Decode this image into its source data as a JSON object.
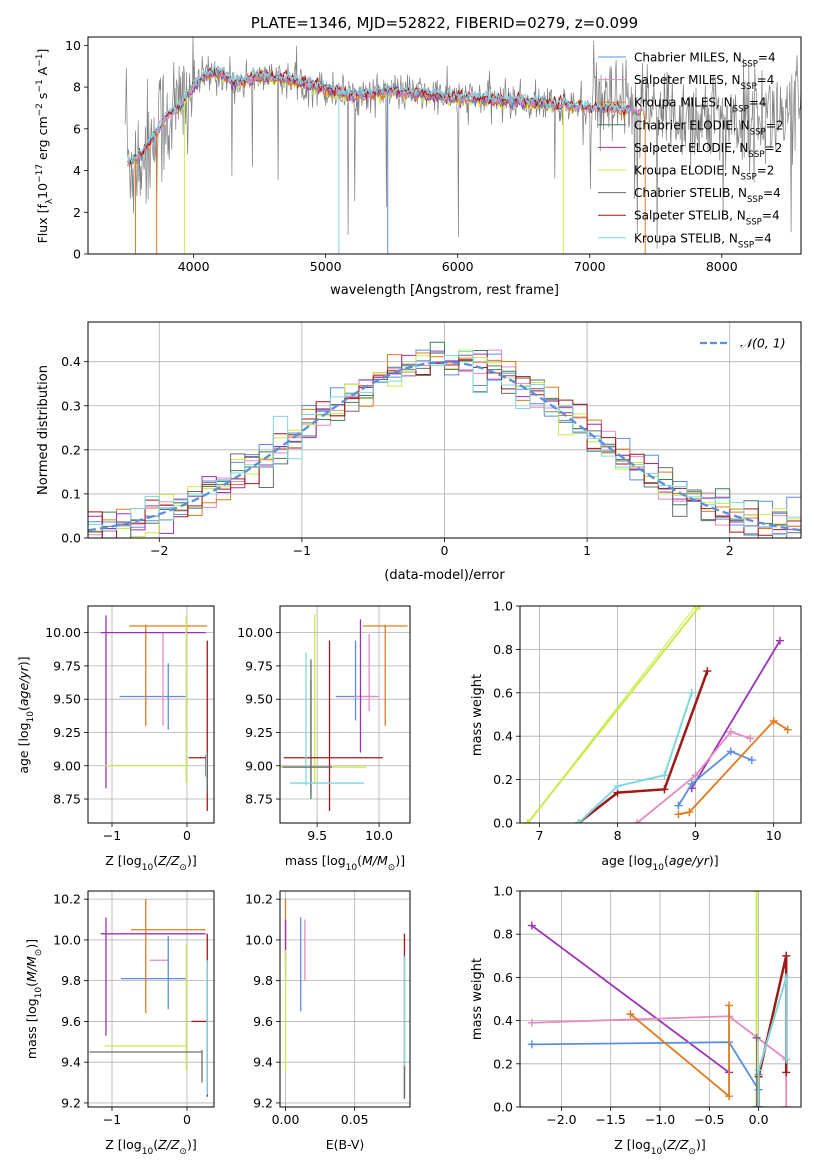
{
  "colors": {
    "chabrier_miles": "#5b8fdd",
    "salpeter_miles": "#e68ac1",
    "kroupa_miles": "#e07b1f",
    "chabrier_elodie": "#3f7f5a",
    "salpeter_elodie": "#9b32b5",
    "kroupa_elodie": "#c8ec4a",
    "chabrier_stelib": "#6e6e6e",
    "salpeter_stelib": "#a01818",
    "kroupa_stelib": "#7fd8dd",
    "normal_curve": "#5b8fdd",
    "grid": "#b0b0b0"
  },
  "chart_data": [
    {
      "id": "spectrum",
      "type": "line",
      "title": "PLATE=1346, MJD=52822, FIBERID=0279, z=0.099",
      "xlabel": "wavelength [Angstrom, rest frame]",
      "ylabel": "Flux [f",
      "ylabel_parts": [
        "Flux [f",
        "λ",
        "10",
        "−17",
        " erg cm",
        "−2",
        " s",
        "−1",
        " A",
        "−1",
        "]"
      ],
      "xlim": [
        3200,
        8600
      ],
      "ylim": [
        0,
        10.4
      ],
      "xticks": [
        4000,
        5000,
        6000,
        7000,
        8000
      ],
      "yticks": [
        0,
        2,
        4,
        6,
        8,
        10
      ],
      "grid": false,
      "legend_position": "top-right",
      "legend": [
        {
          "key": "chabrier_miles",
          "label": "Chabrier MILES, N",
          "sub": "SSP",
          "suffix": "=4"
        },
        {
          "key": "salpeter_miles",
          "label": "Salpeter MILES, N",
          "sub": "SSP",
          "suffix": "=4"
        },
        {
          "key": "kroupa_miles",
          "label": "Kroupa MILES, N",
          "sub": "SSP",
          "suffix": "=4"
        },
        {
          "key": "chabrier_elodie",
          "label": "Chabrier ELODIE, N",
          "sub": "SSP",
          "suffix": "=2"
        },
        {
          "key": "salpeter_elodie",
          "label": "Salpeter ELODIE, N",
          "sub": "SSP",
          "suffix": "=2"
        },
        {
          "key": "kroupa_elodie",
          "label": "Kroupa ELODIE, N",
          "sub": "SSP",
          "suffix": "=2"
        },
        {
          "key": "chabrier_stelib",
          "label": "Chabrier STELIB, N",
          "sub": "SSP",
          "suffix": "=4"
        },
        {
          "key": "salpeter_stelib",
          "label": "Salpeter STELIB, N",
          "sub": "SSP",
          "suffix": "=4"
        },
        {
          "key": "kroupa_stelib",
          "label": "Kroupa STELIB, N",
          "sub": "SSP",
          "suffix": "=4"
        }
      ],
      "continuum": {
        "x": [
          3500,
          3600,
          3700,
          3800,
          3900,
          4000,
          4100,
          4200,
          4300,
          4500,
          4700,
          5000,
          5200,
          5500,
          6000,
          6500,
          7000,
          7500,
          8000,
          8300,
          8600
        ],
        "y": [
          4.3,
          4.7,
          5.6,
          6.6,
          7.0,
          8.1,
          8.6,
          8.7,
          8.2,
          8.5,
          8.4,
          7.9,
          7.6,
          7.8,
          7.5,
          7.3,
          7.0,
          6.8,
          6.4,
          6.6,
          6.7
        ]
      },
      "spectrum_range": [
        3480,
        8600
      ]
    },
    {
      "id": "residuals",
      "type": "step",
      "xlabel": "(data-model)/error",
      "ylabel": "Normed distribution",
      "xlim": [
        -2.5,
        2.5
      ],
      "ylim": [
        0,
        0.49
      ],
      "xticks": [
        -2,
        -1,
        0,
        1,
        2
      ],
      "xtick_labels": [
        "−2",
        "−1",
        "0",
        "1",
        "2"
      ],
      "yticks": [
        0.0,
        0.1,
        0.2,
        0.3,
        0.4
      ],
      "ytick_labels": [
        "0.0",
        "0.1",
        "0.2",
        "0.3",
        "0.4"
      ],
      "grid": true,
      "legend_position": "top-right",
      "legend": [
        {
          "key": "normal_curve",
          "label": "𝒩(0, 1)"
        }
      ],
      "bins": {
        "start": -2.5,
        "width": 0.1
      }
    },
    {
      "id": "age_vs_z",
      "type": "errorbar",
      "xlabel": "Z [log",
      "xlabel_parts": [
        "Z [log",
        "10",
        "(Z/Z",
        "⊙",
        ")]"
      ],
      "ylabel_parts": [
        "age  [log",
        "10",
        "(age/yr)]"
      ],
      "xlim": [
        -1.32,
        0.36
      ],
      "ylim": [
        8.57,
        10.2
      ],
      "xticks": [
        -1,
        0
      ],
      "xtick_labels": [
        "−1",
        "0"
      ],
      "yticks": [
        8.75,
        9.0,
        9.25,
        9.5,
        9.75,
        10.0
      ],
      "ytick_labels": [
        "8.75",
        "9.00",
        "9.25",
        "9.50",
        "9.75",
        "10.00"
      ],
      "grid": true,
      "points": [
        {
          "s": "chabrier_miles",
          "x": -0.45,
          "xe": 0.45,
          "y": 9.52,
          "ye": 0.0
        },
        {
          "s": "chabrier_miles",
          "x": -0.25,
          "xe": 0.02,
          "y": 9.52,
          "ye": 0.25
        },
        {
          "s": "salpeter_miles",
          "x": -0.32,
          "xe": 0.0,
          "y": 9.65,
          "ye": 0.35
        },
        {
          "s": "kroupa_miles",
          "x": -0.25,
          "xe": 0.52,
          "y": 10.05,
          "ye": 0.0
        },
        {
          "s": "kroupa_miles",
          "x": -0.55,
          "xe": 0.0,
          "y": 9.68,
          "ye": 0.38
        },
        {
          "s": "salpeter_elodie",
          "x": -0.45,
          "xe": 0.7,
          "y": 10.0,
          "ye": 0.0
        },
        {
          "s": "salpeter_elodie",
          "x": -1.08,
          "xe": 0.0,
          "y": 9.48,
          "ye": 0.65
        },
        {
          "s": "kroupa_elodie",
          "x": -0.55,
          "xe": 0.55,
          "y": 9.0,
          "ye": 0.0
        },
        {
          "s": "kroupa_elodie",
          "x": -0.01,
          "xe": 0.0,
          "y": 9.5,
          "ye": 0.63
        },
        {
          "s": "chabrier_stelib",
          "x": 0.25,
          "xe": 0.0,
          "y": 9.0,
          "ye": 0.08
        },
        {
          "s": "salpeter_stelib",
          "x": 0.14,
          "xe": 0.12,
          "y": 9.06,
          "ye": 0.0
        },
        {
          "s": "salpeter_stelib",
          "x": 0.27,
          "xe": 0.0,
          "y": 9.3,
          "ye": 0.64
        },
        {
          "s": "kroupa_stelib",
          "x": 0.26,
          "xe": 0.0,
          "y": 8.95,
          "ye": 0.15
        }
      ]
    },
    {
      "id": "age_vs_mass",
      "type": "errorbar",
      "xlabel_parts": [
        "mass [log",
        "10",
        "(M/M",
        "⊙",
        ")]"
      ],
      "xlim": [
        9.2,
        10.25
      ],
      "ylim": [
        8.57,
        10.2
      ],
      "xticks": [
        9.5,
        10.0
      ],
      "xtick_labels": [
        "9.5",
        "10.0"
      ],
      "yticks": [
        8.75,
        9.0,
        9.25,
        9.5,
        9.75,
        10.0
      ],
      "ytick_labels": [
        "8.75",
        "9.00",
        "9.25",
        "9.50",
        "9.75",
        "10.00"
      ],
      "grid": true,
      "points": [
        {
          "s": "chabrier_miles",
          "x": 9.81,
          "xe": 0.16,
          "y": 9.52,
          "ye": 0.0
        },
        {
          "s": "chabrier_miles",
          "x": 9.81,
          "xe": 0.0,
          "y": 9.64,
          "ye": 0.3
        },
        {
          "s": "salpeter_miles",
          "x": 9.9,
          "xe": 0.1,
          "y": 9.52,
          "ye": 0.0
        },
        {
          "s": "salpeter_miles",
          "x": 9.92,
          "xe": 0.0,
          "y": 9.7,
          "ye": 0.29
        },
        {
          "s": "kroupa_miles",
          "x": 10.05,
          "xe": 0.18,
          "y": 10.05,
          "ye": 0.0
        },
        {
          "s": "kroupa_miles",
          "x": 10.05,
          "xe": 0.0,
          "y": 9.68,
          "ye": 0.38
        },
        {
          "s": "salpeter_elodie",
          "x": 9.85,
          "xe": 0.0,
          "y": 9.6,
          "ye": 0.5
        },
        {
          "s": "kroupa_elodie",
          "x": 9.48,
          "xe": 0.0,
          "y": 9.5,
          "ye": 0.64
        },
        {
          "s": "kroupa_elodie",
          "x": 9.55,
          "xe": 0.35,
          "y": 8.99,
          "ye": 0.0
        },
        {
          "s": "chabrier_elodie",
          "x": 9.45,
          "xe": 0.0,
          "y": 9.2,
          "ye": 0.45
        },
        {
          "s": "chabrier_stelib",
          "x": 9.45,
          "xe": 0.0,
          "y": 9.3,
          "ye": 0.5
        },
        {
          "s": "salpeter_stelib",
          "x": 9.63,
          "xe": 0.4,
          "y": 9.06,
          "ye": 0.0
        },
        {
          "s": "salpeter_stelib",
          "x": 9.6,
          "xe": 0.0,
          "y": 9.3,
          "ye": 0.64
        },
        {
          "s": "kroupa_stelib",
          "x": 9.58,
          "xe": 0.3,
          "y": 8.87,
          "ye": 0.0
        },
        {
          "s": "kroupa_stelib",
          "x": 9.41,
          "xe": 0.0,
          "y": 9.35,
          "ye": 0.5
        },
        {
          "s": "chabrier_stelib",
          "x": 9.42,
          "xe": 0.2,
          "y": 8.99,
          "ye": 0.0
        }
      ]
    },
    {
      "id": "massweight_vs_age",
      "type": "line",
      "xlabel_parts": [
        "age  [log",
        "10",
        "(age/yr)]"
      ],
      "ylabel": "mass weight",
      "xlim": [
        6.75,
        10.35
      ],
      "ylim": [
        0,
        1.0
      ],
      "xticks": [
        7,
        8,
        9,
        10
      ],
      "yticks": [
        0.0,
        0.2,
        0.4,
        0.6,
        0.8,
        1.0
      ],
      "ytick_labels": [
        "0.0",
        "0.2",
        "0.4",
        "0.6",
        "0.8",
        "1.0"
      ],
      "grid": true,
      "series": [
        {
          "s": "kroupa_elodie",
          "x": [
            6.85,
            9.05
          ],
          "y": [
            0.0,
            1.0
          ],
          "width": 2
        },
        {
          "s": "kroupa_elodie",
          "x": [
            6.85,
            9.0
          ],
          "y": [
            0.0,
            1.0
          ],
          "width": 1
        },
        {
          "s": "salpeter_stelib",
          "x": [
            7.5,
            8.0,
            8.6,
            9.15
          ],
          "y": [
            0.0,
            0.14,
            0.155,
            0.7
          ],
          "width": 2.5
        },
        {
          "s": "kroupa_stelib",
          "x": [
            7.5,
            8.0,
            8.6,
            8.95
          ],
          "y": [
            0.0,
            0.17,
            0.22,
            0.6
          ],
          "width": 2
        },
        {
          "s": "salpeter_elodie",
          "x": [
            8.95,
            10.08
          ],
          "y": [
            0.16,
            0.84
          ],
          "width": 1.8
        },
        {
          "s": "salpeter_miles",
          "x": [
            8.25,
            9.0,
            9.45,
            9.7
          ],
          "y": [
            0.0,
            0.22,
            0.42,
            0.39
          ],
          "width": 1.8
        },
        {
          "s": "chabrier_miles",
          "x": [
            8.78,
            8.95,
            9.45,
            9.72
          ],
          "y": [
            0.08,
            0.18,
            0.33,
            0.29
          ],
          "width": 1.8
        },
        {
          "s": "kroupa_miles",
          "x": [
            8.78,
            8.92,
            10.0,
            10.18
          ],
          "y": [
            0.04,
            0.05,
            0.47,
            0.43
          ],
          "width": 1.8
        }
      ]
    },
    {
      "id": "mass_vs_z",
      "type": "errorbar",
      "xlabel_parts": [
        "Z [log",
        "10",
        "(Z/Z",
        "⊙",
        ")]"
      ],
      "ylabel_parts": [
        "mass [log",
        "10",
        "(M/M",
        "⊙",
        ")]"
      ],
      "xlim": [
        -1.32,
        0.36
      ],
      "ylim": [
        9.18,
        10.24
      ],
      "xticks": [
        -1,
        0
      ],
      "xtick_labels": [
        "−1",
        "0"
      ],
      "yticks": [
        9.2,
        9.4,
        9.6,
        9.8,
        10.0,
        10.2
      ],
      "ytick_labels": [
        "9.2",
        "9.4",
        "9.6",
        "9.8",
        "10.0",
        "10.2"
      ],
      "grid": true,
      "points": [
        {
          "s": "chabrier_miles",
          "x": -0.45,
          "xe": 0.43,
          "y": 9.81,
          "ye": 0.0
        },
        {
          "s": "chabrier_miles",
          "x": -0.25,
          "xe": 0.0,
          "y": 9.84,
          "ye": 0.18
        },
        {
          "s": "salpeter_miles",
          "x": -0.38,
          "xe": 0.12,
          "y": 9.9,
          "ye": 0.0
        },
        {
          "s": "kroupa_miles",
          "x": -0.25,
          "xe": 0.5,
          "y": 10.05,
          "ye": 0.0
        },
        {
          "s": "kroupa_miles",
          "x": -0.55,
          "xe": 0.0,
          "y": 9.92,
          "ye": 0.28
        },
        {
          "s": "salpeter_elodie",
          "x": -0.45,
          "xe": 0.7,
          "y": 10.03,
          "ye": 0.0
        },
        {
          "s": "salpeter_elodie",
          "x": -1.08,
          "xe": 0.0,
          "y": 9.82,
          "ye": 0.29
        },
        {
          "s": "kroupa_elodie",
          "x": -0.55,
          "xe": 0.55,
          "y": 9.48,
          "ye": 0.0
        },
        {
          "s": "kroupa_elodie",
          "x": -0.01,
          "xe": 0.0,
          "y": 9.67,
          "ye": 0.31
        },
        {
          "s": "chabrier_stelib",
          "x": -0.55,
          "xe": 0.75,
          "y": 9.45,
          "ye": 0.0
        },
        {
          "s": "chabrier_stelib",
          "x": 0.2,
          "xe": 0.0,
          "y": 9.38,
          "ye": 0.08
        },
        {
          "s": "salpeter_stelib",
          "x": 0.16,
          "xe": 0.1,
          "y": 9.6,
          "ye": 0.0
        },
        {
          "s": "salpeter_stelib",
          "x": 0.27,
          "xe": 0.0,
          "y": 9.63,
          "ye": 0.4
        },
        {
          "s": "kroupa_stelib",
          "x": 0.27,
          "xe": 0.0,
          "y": 9.57,
          "ye": 0.33
        }
      ]
    },
    {
      "id": "mass_vs_ebv",
      "type": "errorbar",
      "xlabel": "E(B-V)",
      "xlim": [
        -0.004,
        0.09
      ],
      "ylim": [
        9.18,
        10.24
      ],
      "xticks": [
        0.0,
        0.05
      ],
      "xtick_labels": [
        "0.00",
        "0.05"
      ],
      "yticks": [
        9.2,
        9.4,
        9.6,
        9.8,
        10.0,
        10.2
      ],
      "ytick_labels": [
        "9.2",
        "9.4",
        "9.6",
        "9.8",
        "10.0",
        "10.2"
      ],
      "grid": true,
      "points": [
        {
          "s": "kroupa_miles",
          "x": 0.0,
          "xe": 0.0,
          "y": 10.05,
          "ye": 0.15
        },
        {
          "s": "salpeter_elodie",
          "x": 0.0,
          "xe": 0.0,
          "y": 9.95,
          "ye": 0.15
        },
        {
          "s": "kroupa_elodie",
          "x": 0.0,
          "xe": 0.0,
          "y": 9.65,
          "ye": 0.3
        },
        {
          "s": "chabrier_miles",
          "x": 0.011,
          "xe": 0.0,
          "y": 9.88,
          "ye": 0.23
        },
        {
          "s": "salpeter_miles",
          "x": 0.014,
          "xe": 0.0,
          "y": 9.95,
          "ye": 0.15
        },
        {
          "s": "salpeter_stelib",
          "x": 0.086,
          "xe": 0.0,
          "y": 9.63,
          "ye": 0.4
        },
        {
          "s": "kroupa_stelib",
          "x": 0.086,
          "xe": 0.0,
          "y": 9.58,
          "ye": 0.34
        },
        {
          "s": "chabrier_stelib",
          "x": 0.086,
          "xe": 0.0,
          "y": 9.3,
          "ye": 0.08
        }
      ]
    },
    {
      "id": "massweight_vs_z",
      "type": "line",
      "xlabel_parts": [
        "Z [log",
        "10",
        "(Z/Z",
        "⊙",
        ")]"
      ],
      "ylabel": "mass weight",
      "xlim": [
        -2.42,
        0.43
      ],
      "ylim": [
        0,
        1.0
      ],
      "xticks": [
        -2.0,
        -1.5,
        -1.0,
        -0.5,
        0.0
      ],
      "xtick_labels": [
        "−2.0",
        "−1.5",
        "−1.0",
        "−0.5",
        "0.0"
      ],
      "yticks": [
        0.0,
        0.2,
        0.4,
        0.6,
        0.8,
        1.0
      ],
      "ytick_labels": [
        "0.0",
        "0.2",
        "0.4",
        "0.6",
        "0.8",
        "1.0"
      ],
      "grid": true,
      "series": [
        {
          "s": "kroupa_elodie",
          "x": [
            -0.02,
            -0.02
          ],
          "y": [
            0.0,
            1.0
          ],
          "width": 2
        },
        {
          "s": "salpeter_elodie",
          "x": [
            -2.3,
            -0.3
          ],
          "y": [
            0.84,
            0.16
          ],
          "width": 1.8
        },
        {
          "s": "salpeter_miles",
          "x": [
            -2.3,
            -0.3,
            0.28,
            0.28
          ],
          "y": [
            0.39,
            0.42,
            0.22,
            0.0
          ],
          "width": 1.8
        },
        {
          "s": "chabrier_miles",
          "x": [
            -2.3,
            -0.3,
            0.0,
            0.0
          ],
          "y": [
            0.29,
            0.3,
            0.08,
            0.15
          ],
          "width": 1.8
        },
        {
          "s": "kroupa_miles",
          "x": [
            -1.3,
            -0.3,
            -0.3
          ],
          "y": [
            0.43,
            0.05,
            0.47
          ],
          "width": 1.8
        },
        {
          "s": "salpeter_stelib",
          "x": [
            0.0,
            0.0,
            0.28,
            0.28
          ],
          "y": [
            0.0,
            0.14,
            0.7,
            0.16
          ],
          "width": 2.5
        },
        {
          "s": "kroupa_stelib",
          "x": [
            0.0,
            0.0,
            0.28,
            0.28
          ],
          "y": [
            0.0,
            0.17,
            0.6,
            0.22
          ],
          "width": 2
        },
        {
          "s": "chabrier_stelib",
          "x": [
            -0.02,
            -0.02
          ],
          "y": [
            0.0,
            0.32
          ],
          "width": 1
        }
      ]
    }
  ]
}
